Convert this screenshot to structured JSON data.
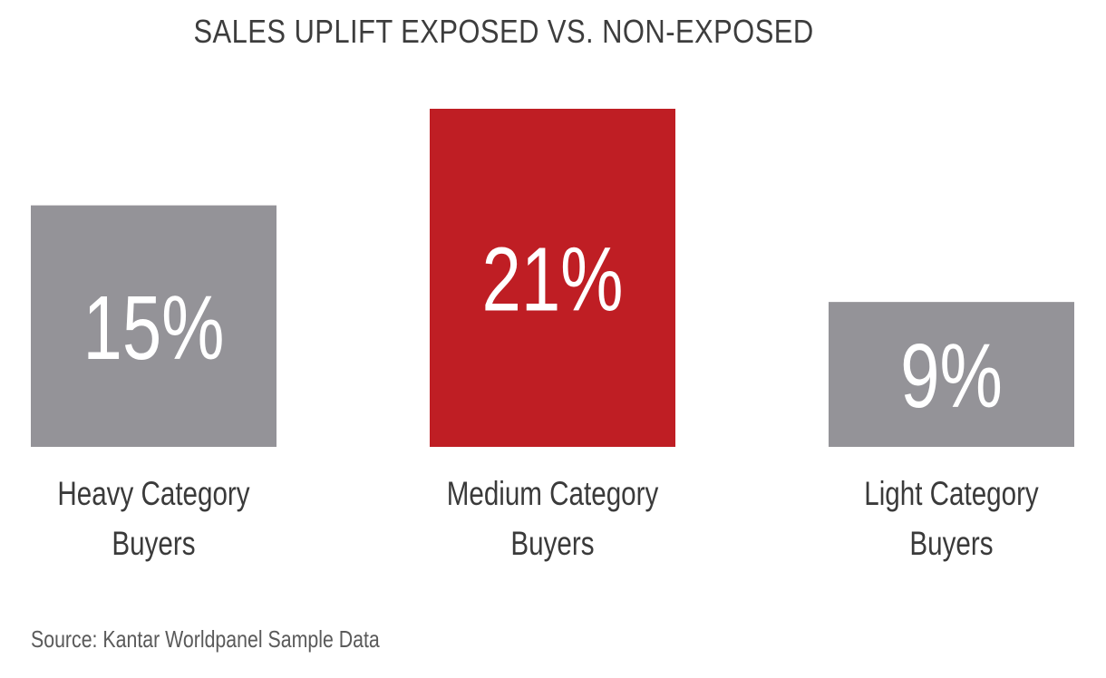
{
  "chart_data": {
    "type": "bar",
    "title": "SALES UPLIFT EXPOSED VS. NON-EXPOSED",
    "categories": [
      "Heavy Category Buyers",
      "Medium Category Buyers",
      "Light Category Buyers"
    ],
    "category_lines": [
      [
        "Heavy Category",
        "Buyers"
      ],
      [
        "Medium Category",
        "Buyers"
      ],
      [
        "Light Category",
        "Buyers"
      ]
    ],
    "values": [
      15,
      21,
      9
    ],
    "value_labels": [
      "15%",
      "21%",
      "9%"
    ],
    "unit": "%",
    "ylim": [
      0,
      21
    ],
    "grid": false,
    "bar_colors": [
      "#949398",
      "#bf1e24",
      "#949398"
    ]
  },
  "source": "Source: Kantar Worldpanel Sample Data",
  "colors": {
    "highlight": "#bf1e24",
    "neutral": "#949398",
    "value_text": "#ffffff",
    "label_text": "#3a3a3a"
  }
}
